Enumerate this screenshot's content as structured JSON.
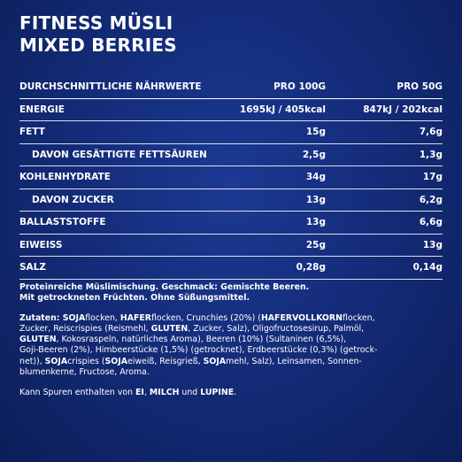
{
  "title": {
    "line1": "FITNESS MÜSLI",
    "line2": "MIXED BERRIES"
  },
  "table": {
    "header": {
      "name": "DURCHSCHNITTLICHE NÄHRWERTE",
      "col1": "PRO 100G",
      "col2": "PRO 50G"
    },
    "rows": [
      {
        "name": "ENERGIE",
        "v1": "1695kJ / 405kcal",
        "v2": "847kJ / 202kcal"
      },
      {
        "name": "FETT",
        "v1": "15g",
        "v2": "7,6g"
      },
      {
        "name": "DAVON GESÄTTIGTE FETTSÄUREN",
        "v1": "2,5g",
        "v2": "1,3g"
      },
      {
        "name": "KOHLENHYDRATE",
        "v1": "34g",
        "v2": "17g"
      },
      {
        "name": "DAVON ZUCKER",
        "v1": "13g",
        "v2": "6,2g"
      },
      {
        "name": "BALLASTSTOFFE",
        "v1": "13g",
        "v2": "6,6g"
      },
      {
        "name": "EIWEISS",
        "v1": "25g",
        "v2": "13g"
      },
      {
        "name": "SALZ",
        "v1": "0,28g",
        "v2": "0,14g"
      }
    ]
  },
  "notes": {
    "description_line1": "Proteinreiche Müslimischung. Geschmack: Gemischte Beeren.",
    "description_line2": "Mit getrockneten Früchten. Ohne Süßungsmittel.",
    "ingredients": {
      "l1": [
        "Zutaten: SOJA",
        "flocken, ",
        "HAFER",
        "flocken, Crunchies (20%) (",
        "HAFERVOLLKORN",
        "flocken,"
      ],
      "l2": [
        "Zucker, Reiscrispies (Reismehl, ",
        "GLUTEN",
        ", Zucker, Salz), Oligofructosesirup, Palmöl,"
      ],
      "l3": [
        "GLUTEN",
        ", Kokosraspeln, natürliches Aroma), Beeren (10%) (Sultaninen (6,5%),"
      ],
      "l4": [
        "Goji-Beeren (2%), Himbeerstücke (1,5%) (getrocknet), Erdbeerstücke (0,3%) (getrock-"
      ],
      "l5": [
        "net)), ",
        "SOJA",
        "crispies (",
        "SOJA",
        "eiweiß, Reisgrieß, ",
        "SOJA",
        "mehl, Salz), Leinsamen, Sonnen-"
      ],
      "l6": [
        "blumenkerne, Fructose, Aroma."
      ]
    },
    "allergens": [
      "Kann Spuren enthalten von ",
      "EI",
      ", ",
      "MILCH",
      " und ",
      "LUPINE",
      "."
    ]
  }
}
